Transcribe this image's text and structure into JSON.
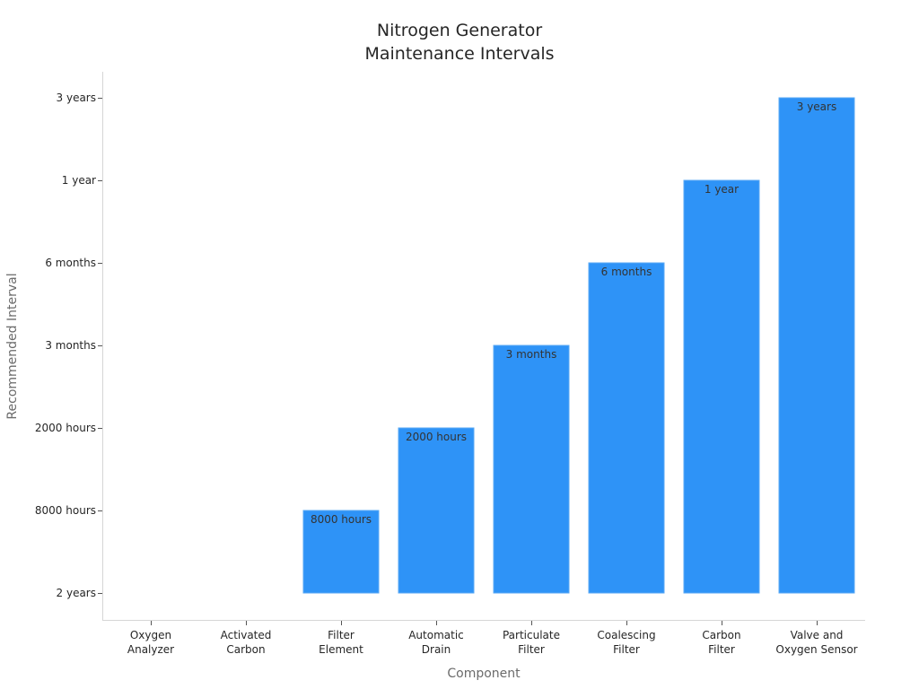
{
  "chart_data": {
    "type": "bar",
    "title": [
      "Nitrogen Generator",
      "Maintenance Intervals"
    ],
    "xlabel": "Component",
    "ylabel": "Recommended Interval",
    "categories": [
      [
        "Oxygen",
        "Analyzer"
      ],
      [
        "Activated",
        "Carbon"
      ],
      [
        "Filter",
        "Element"
      ],
      [
        "Automatic",
        "Drain"
      ],
      [
        "Particulate",
        "Filter"
      ],
      [
        "Coalescing",
        "Filter"
      ],
      [
        "Carbon",
        "Filter"
      ],
      [
        "Valve and",
        "Oxygen Sensor"
      ]
    ],
    "y_categories": [
      "2 years",
      "8000 hours",
      "2000 hours",
      "3 months",
      "6 months",
      "1 year",
      "3 years"
    ],
    "values": [
      "2 years",
      "2 years",
      "8000 hours",
      "2000 hours",
      "3 months",
      "6 months",
      "1 year",
      "3 years"
    ],
    "data_labels": [
      "",
      "",
      "8000 hours",
      "2000 hours",
      "3 months",
      "6 months",
      "1 year",
      "3 years"
    ],
    "bar_color": "#2e93f7",
    "grid": false,
    "legend": "none"
  }
}
